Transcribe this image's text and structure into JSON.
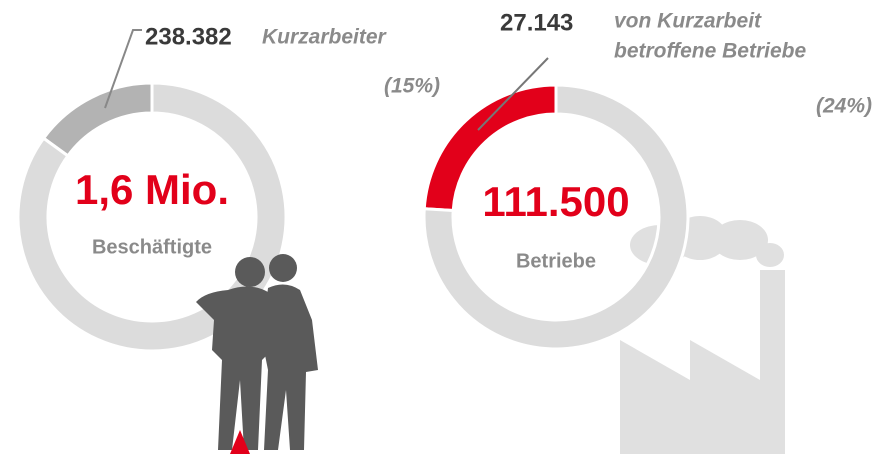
{
  "chart_data": [
    {
      "type": "pie",
      "donut": true,
      "values": [
        15,
        85
      ],
      "value_labels": [
        "(15%)",
        null
      ],
      "colors": [
        "#b3b3b3",
        "#dcdcdc"
      ],
      "annotation": {
        "number": "238.382",
        "text_lines": [
          "Kurzarbeiter"
        ]
      },
      "center_value": "1,6 Mio.",
      "center_label": "Beschäftigte"
    },
    {
      "type": "pie",
      "donut": true,
      "values": [
        24,
        76
      ],
      "value_labels": [
        "(24%)",
        null
      ],
      "colors": [
        "#e2001a",
        "#dcdcdc"
      ],
      "annotation": {
        "number": "27.143",
        "text_lines": [
          "von Kurzarbeit",
          "betroffene Betriebe"
        ]
      },
      "center_value": "111.500",
      "center_label": "Betriebe"
    }
  ]
}
